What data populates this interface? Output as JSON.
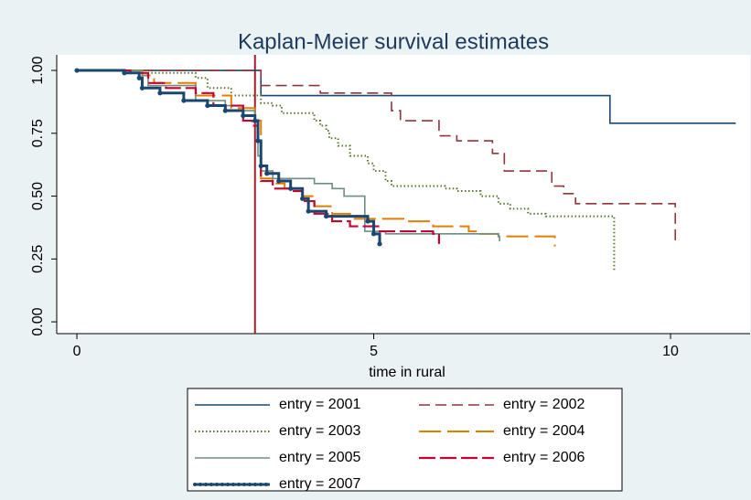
{
  "chart_data": {
    "type": "step",
    "title": "Kaplan-Meier survival estimates",
    "x_label": "time in rural",
    "xlim": [
      -0.34,
      11.34
    ],
    "ylim": [
      -0.047,
      1.062
    ],
    "xticks": [
      0,
      5,
      10
    ],
    "yticks": [
      {
        "value": 0,
        "label": "0.00"
      },
      {
        "value": 0.25,
        "label": "0.25"
      },
      {
        "value": 0.5,
        "label": "0.50"
      },
      {
        "value": 0.75,
        "label": "0.75"
      },
      {
        "value": 1,
        "label": "1.00"
      }
    ],
    "reference_line_x": 3,
    "reference_color": "#a0202a",
    "series": [
      {
        "name": "entry = 2001",
        "color": "#1a476f",
        "style": "solid",
        "x": [
          0,
          3.1,
          8.98,
          11.1
        ],
        "values": [
          1,
          0.9,
          0.79,
          0.79
        ]
      },
      {
        "name": "entry = 2002",
        "color": "#90353b",
        "style": "dash",
        "x": [
          0,
          3.1,
          4.1,
          5.3,
          5.45,
          6.1,
          6.4,
          7.0,
          7.2,
          8.0,
          8.2,
          8.4,
          10.08
        ],
        "values": [
          1,
          0.94,
          0.91,
          0.84,
          0.8,
          0.74,
          0.72,
          0.67,
          0.6,
          0.54,
          0.51,
          0.47,
          0.31
        ]
      },
      {
        "name": "entry = 2003",
        "color": "#55752f",
        "style": "dot",
        "x": [
          0,
          1.2,
          2.0,
          2.2,
          2.6,
          3.1,
          3.3,
          3.45,
          4.0,
          4.1,
          4.2,
          4.25,
          4.4,
          4.6,
          4.9,
          5.0,
          5.2,
          5.3,
          6.2,
          6.4,
          6.8,
          7.1,
          7.3,
          7.6,
          7.9,
          9.05
        ],
        "values": [
          1,
          0.99,
          0.97,
          0.93,
          0.9,
          0.87,
          0.86,
          0.83,
          0.8,
          0.78,
          0.76,
          0.73,
          0.7,
          0.66,
          0.63,
          0.6,
          0.56,
          0.54,
          0.53,
          0.52,
          0.5,
          0.47,
          0.45,
          0.43,
          0.42,
          0.2
        ]
      },
      {
        "name": "entry = 2004",
        "color": "#e37e00",
        "style": "longdash",
        "x": [
          0,
          1.1,
          1.3,
          2.0,
          2.6,
          3.0,
          3.1,
          3.3,
          3.5,
          3.8,
          4.0,
          4.3,
          4.6,
          5.5,
          6.0,
          6.6,
          6.8,
          7.1,
          8.05
        ],
        "values": [
          1,
          0.98,
          0.95,
          0.9,
          0.85,
          0.8,
          0.57,
          0.55,
          0.53,
          0.5,
          0.46,
          0.43,
          0.41,
          0.4,
          0.38,
          0.36,
          0.35,
          0.34,
          0.3
        ]
      },
      {
        "name": "entry = 2005",
        "color": "#6e8e84",
        "style": "solid",
        "x": [
          0,
          1.1,
          1.2,
          2.0,
          2.5,
          2.8,
          3.0,
          3.05,
          3.1,
          3.3,
          4.0,
          4.3,
          4.5,
          4.85,
          5.2,
          7.1,
          7.12
        ],
        "values": [
          1,
          0.98,
          0.94,
          0.88,
          0.86,
          0.84,
          0.8,
          0.66,
          0.6,
          0.57,
          0.55,
          0.53,
          0.5,
          0.36,
          0.35,
          0.34,
          0.32
        ]
      },
      {
        "name": "entry = 2006",
        "color": "#c10534",
        "style": "redlong",
        "x": [
          0,
          0.9,
          1.2,
          1.5,
          2.0,
          2.3,
          2.8,
          2.95,
          3.05,
          3.1,
          3.3,
          3.6,
          3.8,
          4.0,
          4.3,
          4.6,
          5.1,
          6.0,
          6.1
        ],
        "values": [
          1,
          0.99,
          0.95,
          0.93,
          0.91,
          0.86,
          0.8,
          0.78,
          0.72,
          0.56,
          0.53,
          0.52,
          0.48,
          0.43,
          0.4,
          0.38,
          0.36,
          0.35,
          0.31
        ]
      },
      {
        "name": "entry = 2007",
        "color": "#1a476f",
        "style": "thick",
        "marker": true,
        "x": [
          0,
          0.8,
          1.05,
          1.1,
          1.4,
          1.8,
          2.2,
          2.5,
          2.8,
          3.0,
          3.05,
          3.1,
          3.2,
          3.4,
          3.6,
          3.8,
          3.9,
          4.2,
          4.9,
          5.0,
          5.1
        ],
        "values": [
          1,
          0.99,
          0.97,
          0.93,
          0.91,
          0.88,
          0.86,
          0.84,
          0.82,
          0.8,
          0.72,
          0.62,
          0.59,
          0.56,
          0.53,
          0.49,
          0.44,
          0.42,
          0.4,
          0.35,
          0.31
        ]
      }
    ]
  }
}
